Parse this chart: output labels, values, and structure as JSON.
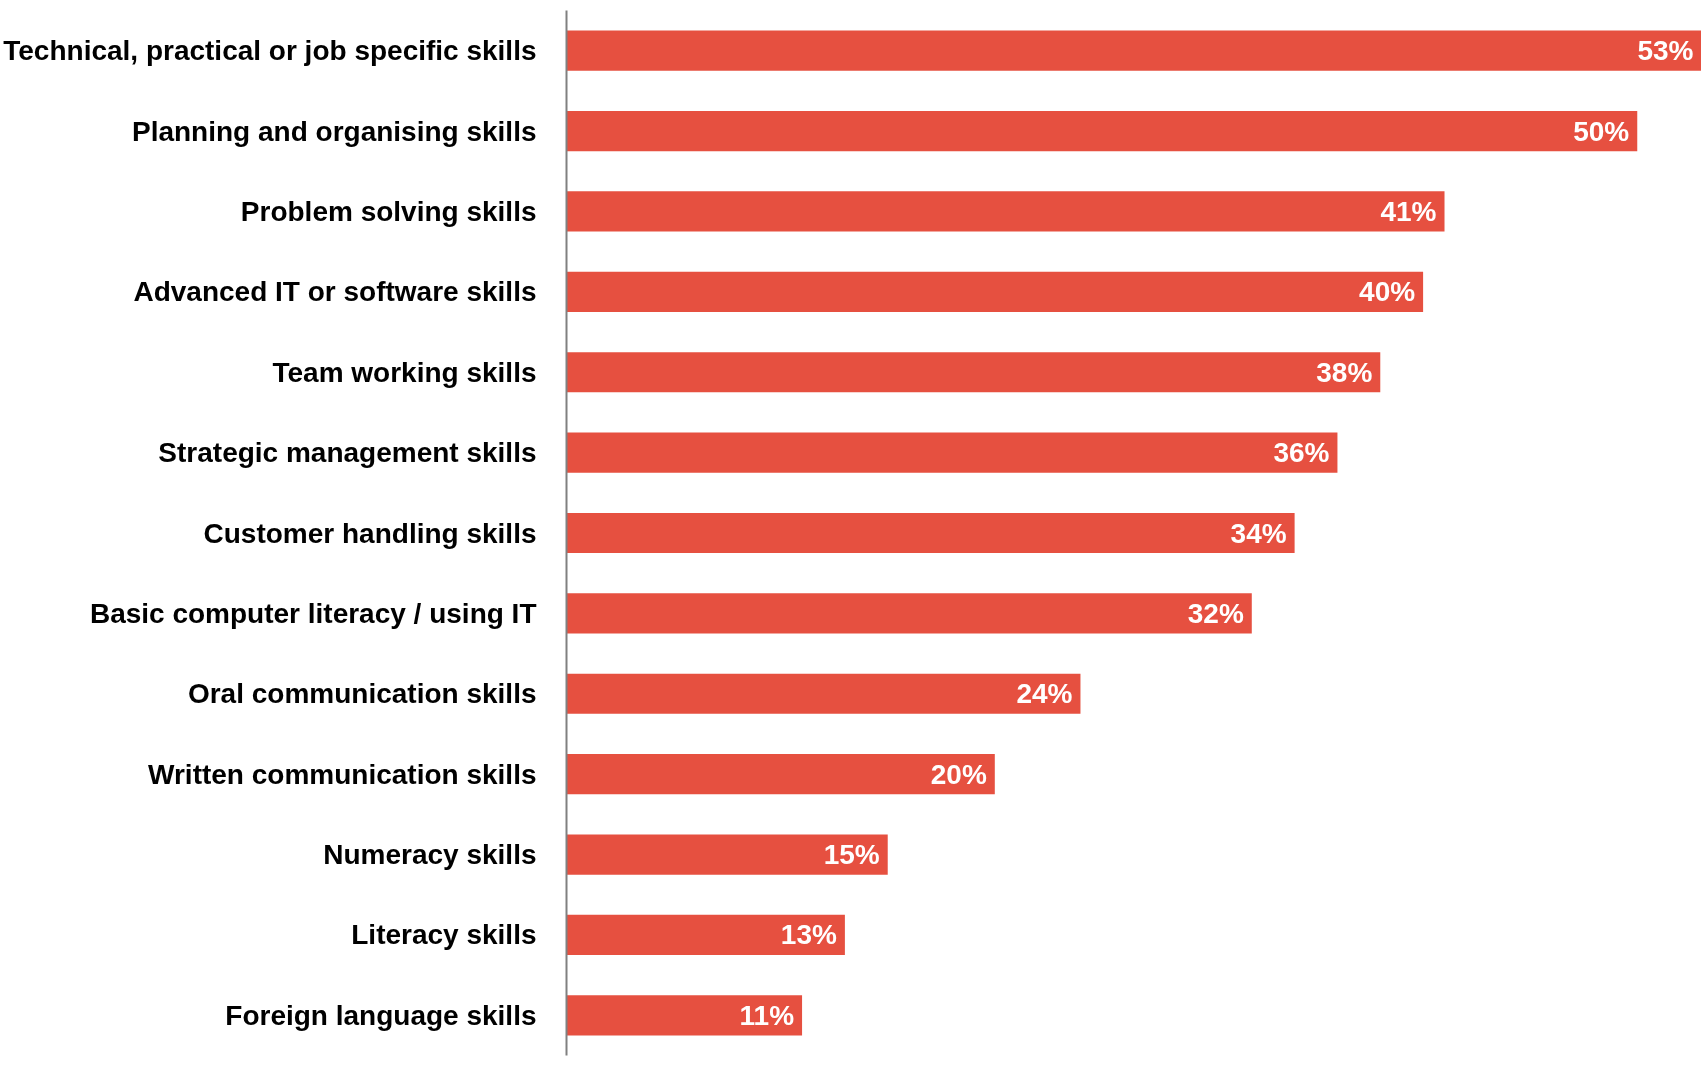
{
  "chart_data": {
    "type": "bar",
    "orientation": "horizontal",
    "categories": [
      "Technical, practical or job specific skills",
      "Planning and organising skills",
      "Problem solving skills",
      "Advanced IT or software skills",
      "Team working skills",
      "Strategic management skills",
      "Customer handling skills",
      "Basic computer literacy / using IT",
      "Oral communication skills",
      "Written communication skills",
      "Numeracy skills",
      "Literacy skills",
      "Foreign language skills"
    ],
    "values": [
      53,
      50,
      41,
      40,
      38,
      36,
      34,
      32,
      24,
      20,
      15,
      13,
      11
    ],
    "value_labels": [
      "53%",
      "50%",
      "41%",
      "40%",
      "38%",
      "36%",
      "34%",
      "32%",
      "24%",
      "20%",
      "15%",
      "13%",
      "11%"
    ],
    "color": "#e65040",
    "grid": false
  }
}
